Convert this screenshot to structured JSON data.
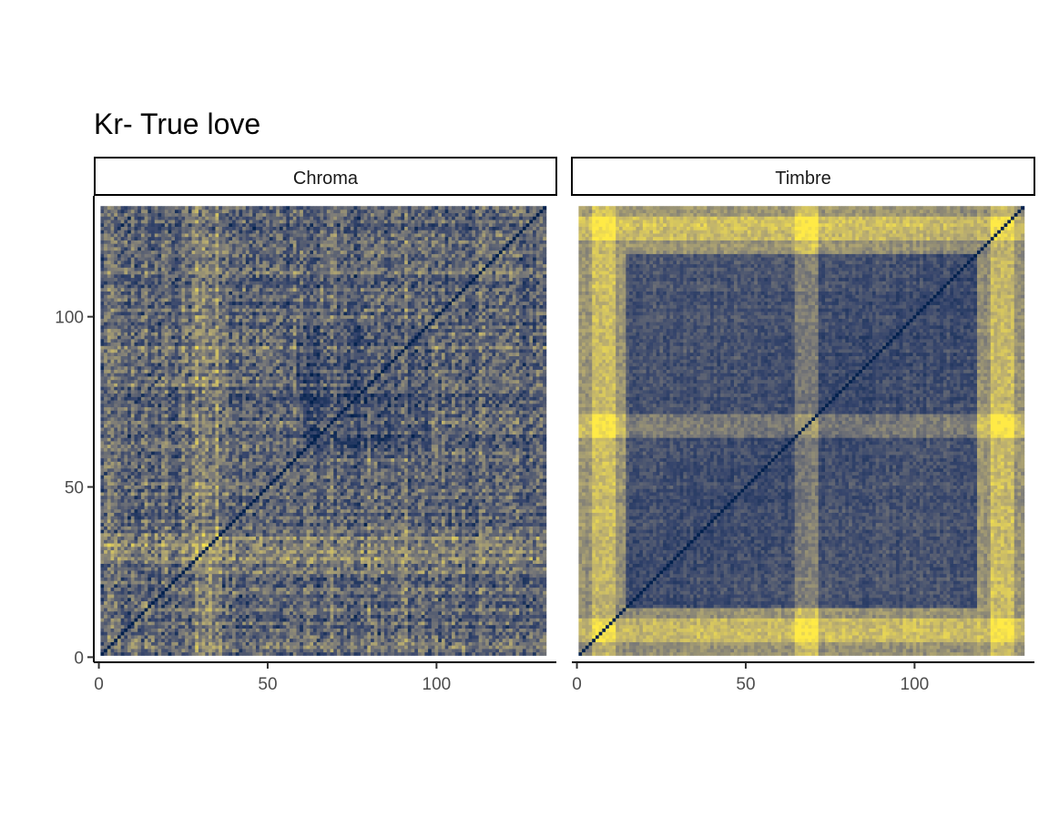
{
  "chart_data": {
    "type": "heatmap",
    "title": "Kr- True love",
    "xlabel": "",
    "ylabel": "",
    "n_segments": 132,
    "grid": false,
    "legend": "none",
    "colors": {
      "low": "#00204d",
      "mid": "#7c7b78",
      "high": "#ffea46"
    },
    "x_ticks": [
      0,
      50,
      100
    ],
    "y_ticks": [
      0,
      50,
      100
    ],
    "xlim": [
      -1.5,
      135.5
    ],
    "ylim": [
      -1.5,
      135.5
    ],
    "panels": [
      {
        "name": "Chroma",
        "section_boundaries": [
          28,
          58
        ],
        "repeat_period": 4,
        "notes": "self-similarity matrix of chroma features; diagonal near 0 (dark); bright bands near segments 28-35 and 58"
      },
      {
        "name": "Timbre",
        "section_boundaries": [
          15,
          73,
          118
        ],
        "bright_bands": [
          8,
          68,
          126
        ],
        "notes": "self-similarity matrix of timbre features; dark block structure 15-118; bright bands near segments 8, 68, 126"
      }
    ]
  }
}
